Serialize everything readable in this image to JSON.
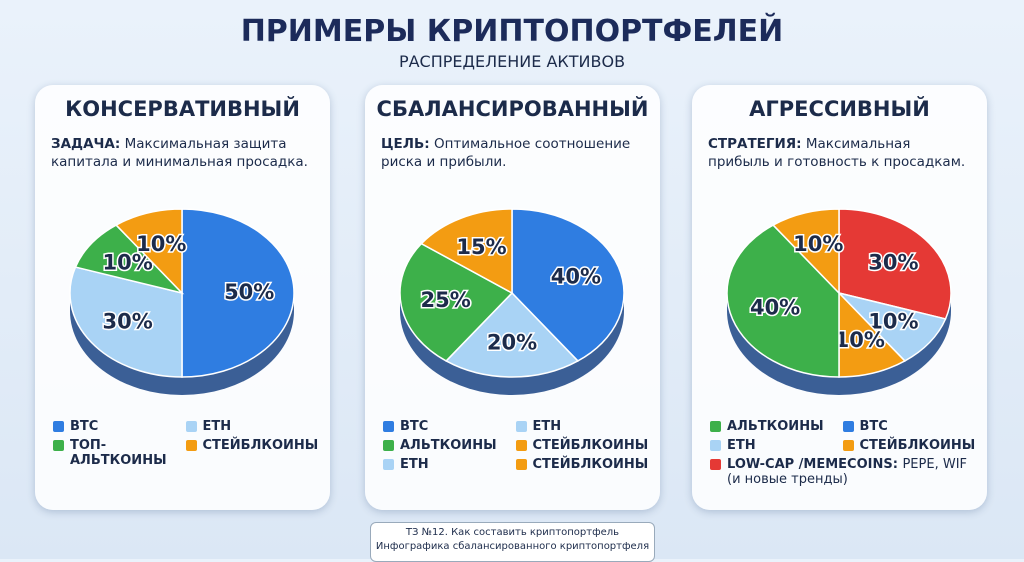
{
  "header": {
    "title": "ПРИМЕРЫ КРИПТОПОРТФЕЛЕЙ",
    "subtitle": "РАСПРЕДЕЛЕНИЕ АКТИВОВ"
  },
  "chart_data": [
    {
      "type": "pie",
      "title": "КОНСЕРВАТИВНЫЙ",
      "goal_label": "ЗАДАЧА:",
      "goal_text": "Максимальная защита капитала и минимальная просадка.",
      "values": [
        50,
        30,
        10,
        10
      ],
      "value_labels": [
        "50%",
        "30%",
        "10%",
        "10%"
      ],
      "colors": [
        "#2f7de1",
        "#a9d3f5",
        "#3db04a",
        "#f39c12"
      ],
      "legend": [
        {
          "name": "BTC",
          "color": "#2f7de1"
        },
        {
          "name": "ETH",
          "color": "#a9d3f5"
        },
        {
          "name": "ТОП-АЛЬТКОИНЫ",
          "color": "#3db04a"
        },
        {
          "name": "СТЕЙБЛКОИНЫ",
          "color": "#f39c12"
        }
      ]
    },
    {
      "type": "pie",
      "title": "СБАЛАНСИРОВАННЫЙ",
      "goal_label": "ЦЕЛЬ:",
      "goal_text": "Оптимальное соотношение риска и прибыли.",
      "values": [
        40,
        20,
        25,
        15
      ],
      "value_labels": [
        "40%",
        "20%",
        "25%",
        "15%"
      ],
      "colors": [
        "#2f7de1",
        "#a9d3f5",
        "#3db04a",
        "#f39c12"
      ],
      "legend": [
        {
          "name": "BTC",
          "color": "#2f7de1"
        },
        {
          "name": "ETH",
          "color": "#a9d3f5"
        },
        {
          "name": "АЛЬТКОИНЫ",
          "color": "#3db04a"
        },
        {
          "name": "СТЕЙБЛКОИНЫ",
          "color": "#f39c12"
        },
        {
          "name": "ETH",
          "color": "#a9d3f5"
        },
        {
          "name": "СТЕЙБЛКОИНЫ",
          "color": "#f39c12"
        }
      ]
    },
    {
      "type": "pie",
      "title": "АГРЕССИВНЫЙ",
      "goal_label": "СТРАТЕГИЯ:",
      "goal_text": "Максимальная прибыль и готовность к просадкам.",
      "values": [
        30,
        10,
        10,
        40,
        10
      ],
      "value_labels": [
        "30%",
        "10%",
        "10%",
        "40%",
        "10%"
      ],
      "colors": [
        "#e53935",
        "#a9d3f5",
        "#f39c12",
        "#3db04a",
        "#f39c12"
      ],
      "legend": [
        {
          "name": "АЛЬТКОИНЫ",
          "color": "#3db04a"
        },
        {
          "name": "BTC",
          "color": "#2f7de1"
        },
        {
          "name": "ETH",
          "color": "#a9d3f5"
        },
        {
          "name": "СТЕЙБЛКОИНЫ",
          "color": "#f39c12"
        },
        {
          "name": "LOW-CAP /MEMECOINS:",
          "color": "#e53935",
          "note": "PEPE, WIF (и новые тренды)"
        }
      ]
    }
  ],
  "footer": {
    "line1": "ТЗ №12. Как составить криптопортфель",
    "line2": "Инфографика сбалансированного криптопортфеля"
  }
}
